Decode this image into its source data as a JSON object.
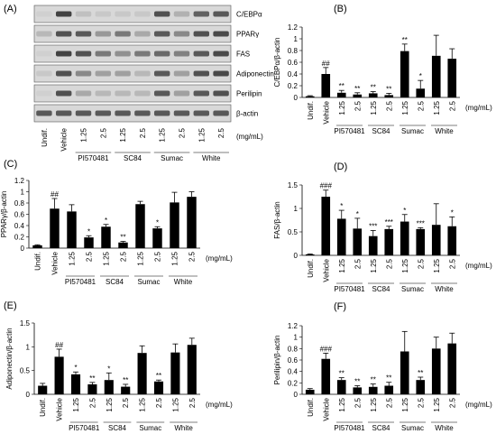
{
  "figure": {
    "background": "#ffffff",
    "bar_color": "#000000",
    "blot_bg": "#d8d8d8",
    "band_color": "#3a3a3a"
  },
  "blot": {
    "panel_label": "(A)",
    "bands": [
      "C/EBPα",
      "PPARγ",
      "FAS",
      "Adiponectin",
      "Perilipin",
      "β-actin"
    ],
    "lanes": [
      "Undif.",
      "Vehicle",
      "1.25",
      "2.5",
      "1.25",
      "2.5",
      "1.25",
      "2.5",
      "1.25",
      "2.5"
    ],
    "lane_intensity": [
      [
        0.05,
        0.95,
        0.15,
        0.1,
        0.1,
        0.1,
        0.85,
        0.25,
        0.75,
        0.8
      ],
      [
        0.2,
        0.85,
        0.8,
        0.4,
        0.6,
        0.3,
        0.8,
        0.5,
        0.85,
        0.9
      ],
      [
        0.05,
        0.95,
        0.85,
        0.6,
        0.45,
        0.6,
        0.7,
        0.55,
        0.8,
        0.9
      ],
      [
        0.1,
        0.85,
        0.5,
        0.35,
        0.35,
        0.2,
        0.8,
        0.35,
        0.85,
        0.9
      ],
      [
        0.05,
        0.85,
        0.3,
        0.2,
        0.2,
        0.2,
        0.8,
        0.35,
        0.8,
        0.85
      ],
      [
        0.8,
        0.8,
        0.8,
        0.8,
        0.8,
        0.8,
        0.8,
        0.8,
        0.8,
        0.8
      ]
    ],
    "unit": "(mg/mL)",
    "groups": [
      "PI570481",
      "SC84",
      "Sumac",
      "White"
    ]
  },
  "chart_data": [
    {
      "panel": "(B)",
      "type": "bar",
      "ylabel": "C/EBPα/β-actin",
      "ylim": [
        0,
        1.2
      ],
      "yticks": [
        "0",
        "0.2",
        "0.4",
        "0.6",
        "0.8",
        "1",
        "1.2"
      ],
      "categories": [
        "Undif.",
        "Vehicle",
        "1.25",
        "2.5",
        "1.25",
        "2.5",
        "1.25",
        "2.5",
        "1.25",
        "2.5"
      ],
      "groups": [
        "PI570481",
        "SC84",
        "Sumac",
        "White"
      ],
      "unit": "(mg/mL)",
      "values": [
        0.02,
        0.4,
        0.08,
        0.05,
        0.07,
        0.04,
        0.79,
        0.15,
        0.71,
        0.66
      ],
      "errors": [
        0.01,
        0.11,
        0.04,
        0.03,
        0.03,
        0.03,
        0.12,
        0.14,
        0.35,
        0.17
      ],
      "marks": [
        "",
        "##",
        "**",
        "**",
        "**",
        "**",
        "**",
        "*",
        "",
        ""
      ]
    },
    {
      "panel": "(C)",
      "type": "bar",
      "ylabel": "PPARγ/β-actin",
      "ylim": [
        0,
        1.2
      ],
      "yticks": [
        "0",
        "0.2",
        "0.4",
        "0.6",
        "0.8",
        "1",
        "1.2"
      ],
      "categories": [
        "Undif.",
        "Vehicle",
        "1.25",
        "2.5",
        "1.25",
        "2.5",
        "1.25",
        "2.5",
        "1.25",
        "2.5"
      ],
      "groups": [
        "PI570481",
        "SC84",
        "Sumac",
        "White"
      ],
      "unit": "(mg/mL)",
      "values": [
        0.05,
        0.7,
        0.65,
        0.19,
        0.38,
        0.1,
        0.78,
        0.35,
        0.81,
        0.91
      ],
      "errors": [
        0.01,
        0.18,
        0.12,
        0.03,
        0.04,
        0.02,
        0.05,
        0.03,
        0.18,
        0.09
      ],
      "marks": [
        "",
        "##",
        "",
        "*",
        "*",
        "**",
        "",
        "*",
        "",
        ""
      ]
    },
    {
      "panel": "(D)",
      "type": "bar",
      "ylabel": "FAS/β-actin",
      "ylim": [
        0,
        1.5
      ],
      "yticks": [
        "0",
        "0.5",
        "1",
        "1.5"
      ],
      "categories": [
        "Undif.",
        "Vehicle",
        "1.25",
        "2.5",
        "1.25",
        "2.5",
        "1.25",
        "2.5",
        "1.25",
        "2.5"
      ],
      "groups": [
        "PI570481",
        "SC84",
        "Sumac",
        "White"
      ],
      "unit": "(mg/mL)",
      "values": [
        0.02,
        1.25,
        0.78,
        0.57,
        0.41,
        0.56,
        0.72,
        0.56,
        0.65,
        0.62
      ],
      "errors": [
        0.01,
        0.14,
        0.18,
        0.22,
        0.12,
        0.06,
        0.15,
        0.03,
        0.45,
        0.2
      ],
      "marks": [
        "",
        "###",
        "*",
        "*",
        "***",
        "***",
        "*",
        "***",
        "",
        "*"
      ]
    },
    {
      "panel": "(E)",
      "type": "bar",
      "ylabel": "Adiponectin/β-actin",
      "ylim": [
        0,
        1.5
      ],
      "yticks": [
        "0",
        "0.5",
        "1",
        "1.5"
      ],
      "categories": [
        "Undif.",
        "Vehicle",
        "1.25",
        "2.5",
        "1.25",
        "2.5",
        "1.25",
        "2.5",
        "1.25",
        "2.5"
      ],
      "groups": [
        "PI570481",
        "SC84",
        "Sumac",
        "White"
      ],
      "unit": "(mg/mL)",
      "values": [
        0.18,
        0.79,
        0.42,
        0.21,
        0.3,
        0.16,
        0.87,
        0.27,
        0.88,
        1.04
      ],
      "errors": [
        0.05,
        0.16,
        0.05,
        0.04,
        0.15,
        0.05,
        0.15,
        0.03,
        0.18,
        0.14
      ],
      "marks": [
        "",
        "##",
        "*",
        "**",
        "*",
        "**",
        "",
        "**",
        "",
        ""
      ]
    },
    {
      "panel": "(F)",
      "type": "bar",
      "ylabel": "Perilipin/β-actin",
      "ylim": [
        0,
        1.2
      ],
      "yticks": [
        "0",
        "0.2",
        "0.4",
        "0.6",
        "0.8",
        "1",
        "1.2"
      ],
      "categories": [
        "Undif.",
        "Vehicle",
        "1.25",
        "2.5",
        "1.25",
        "2.5",
        "1.25",
        "2.5",
        "1.25",
        "2.5"
      ],
      "groups": [
        "PI570481",
        "SC84",
        "Sumac",
        "White"
      ],
      "unit": "(mg/mL)",
      "values": [
        0.08,
        0.62,
        0.25,
        0.12,
        0.13,
        0.15,
        0.75,
        0.25,
        0.8,
        0.89
      ],
      "errors": [
        0.02,
        0.1,
        0.04,
        0.03,
        0.05,
        0.06,
        0.35,
        0.05,
        0.2,
        0.18
      ],
      "marks": [
        "",
        "###",
        "**",
        "**",
        "**",
        "**",
        "",
        "**",
        "",
        ""
      ]
    }
  ]
}
